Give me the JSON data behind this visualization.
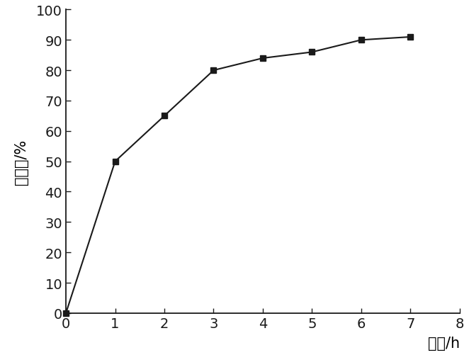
{
  "x": [
    0,
    1,
    2,
    3,
    4,
    5,
    6,
    7
  ],
  "y": [
    0,
    50,
    65,
    80,
    84,
    86,
    90,
    91
  ],
  "xlim": [
    0,
    8
  ],
  "ylim": [
    0,
    100
  ],
  "xticks": [
    0,
    1,
    2,
    3,
    4,
    5,
    6,
    7,
    8
  ],
  "yticks": [
    0,
    10,
    20,
    30,
    40,
    50,
    60,
    70,
    80,
    90,
    100
  ],
  "xlabel": "时间/h",
  "ylabel": "降粘率/%",
  "line_color": "#1a1a1a",
  "marker": "s",
  "marker_color": "#1a1a1a",
  "marker_size": 6,
  "line_width": 1.5,
  "background_color": "#ffffff",
  "tick_fontsize": 14,
  "label_fontsize": 15
}
